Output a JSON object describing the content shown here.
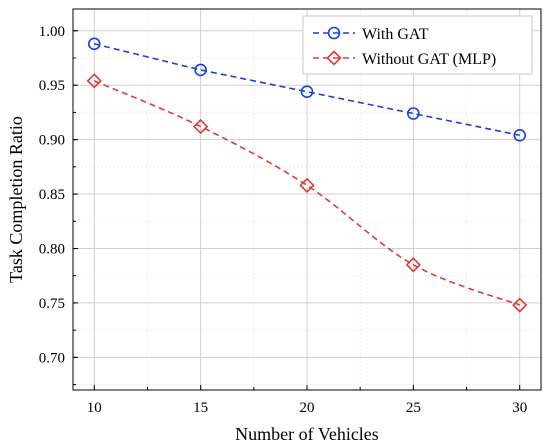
{
  "chart_data": {
    "type": "line",
    "xlabel": "Number of Vehicles",
    "ylabel": "Task Completion Ratio",
    "x": [
      10,
      15,
      20,
      25,
      30
    ],
    "xticks": [
      "10",
      "15",
      "20",
      "25",
      "30"
    ],
    "yticks": [
      "0.70",
      "0.75",
      "0.80",
      "0.85",
      "0.90",
      "0.95",
      "1.00"
    ],
    "xlim": [
      9,
      31
    ],
    "ylim": [
      0.67,
      1.02
    ],
    "grid": true,
    "legend_position": "top-right",
    "series": [
      {
        "name": "With GAT",
        "values": [
          0.988,
          0.964,
          0.944,
          0.924,
          0.904
        ],
        "color": "#1f3fd6",
        "marker": "circle",
        "linestyle": "dashed"
      },
      {
        "name": "Without GAT (MLP)",
        "values": [
          0.954,
          0.912,
          0.858,
          0.785,
          0.748
        ],
        "color": "#e03a3a",
        "marker": "diamond",
        "linestyle": "dashed"
      }
    ]
  }
}
